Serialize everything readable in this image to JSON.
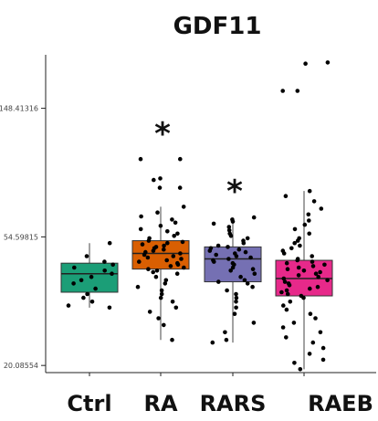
{
  "chart_data": {
    "type": "box",
    "title": "GDF11",
    "xlabel": "",
    "ylabel": "",
    "y_scale": "log",
    "ylim": [
      19.0,
      225.0
    ],
    "y_ticks": [
      {
        "value": 20.08554,
        "label": "20.08554"
      },
      {
        "value": 54.59815,
        "label": "54.59815"
      },
      {
        "value": 148.41316,
        "label": "148.41316"
      }
    ],
    "grid": false,
    "categories": [
      "Ctrl",
      "RA",
      "RARS",
      "RAEB"
    ],
    "boxes": [
      {
        "name": "Ctrl",
        "color": "#1b9e77",
        "whisker_low": 31.5,
        "q1": 35.5,
        "median": 41.0,
        "q3": 44.5,
        "whisker_high": 52.0,
        "significance": ""
      },
      {
        "name": "RA",
        "color": "#d95f02",
        "whisker_low": 24.5,
        "q1": 42.5,
        "median": 48.0,
        "q3": 53.0,
        "whisker_high": 69.0,
        "significance": "*"
      },
      {
        "name": "RARS",
        "color": "#7570b3",
        "whisker_low": 24.0,
        "q1": 38.5,
        "median": 46.0,
        "q3": 50.5,
        "whisker_high": 63.5,
        "significance": "*"
      },
      {
        "name": "RAEB",
        "color": "#e7298a",
        "whisker_low": 19.5,
        "q1": 34.5,
        "median": 39.5,
        "q3": 45.5,
        "whisker_high": 78.0,
        "significance": ""
      }
    ],
    "points": [
      {
        "group": 0,
        "values": [
          31.5,
          32.0,
          33.0,
          34.0,
          35.0,
          36.5,
          38.0,
          39.0,
          40.0,
          41.0,
          42.0,
          43.0,
          44.0,
          45.0,
          47.0,
          52.0
        ]
      },
      {
        "group": 1,
        "values": [
          24.5,
          27.5,
          29.0,
          30.5,
          31.5,
          33.0,
          34.0,
          35.0,
          36.0,
          37.0,
          38.0,
          39.0,
          40.0,
          41.0,
          41.5,
          42.0,
          42.5,
          43.0,
          43.5,
          44.0,
          44.5,
          45.0,
          45.5,
          46.0,
          46.5,
          47.0,
          47.5,
          48.0,
          48.5,
          49.0,
          49.5,
          50.0,
          50.5,
          51.0,
          51.5,
          52.0,
          52.5,
          53.0,
          54.0,
          55.0,
          56.0,
          57.0,
          58.0,
          59.5,
          61.0,
          62.5,
          64.0,
          66.0,
          69.0,
          80.0,
          80.0,
          85.0,
          86.0,
          100.0,
          100.0
        ]
      },
      {
        "group": 2,
        "values": [
          24.0,
          24.5,
          26.0,
          28.0,
          30.0,
          31.5,
          33.0,
          34.0,
          35.0,
          36.0,
          37.0,
          38.0,
          38.5,
          39.0,
          40.0,
          41.0,
          42.0,
          42.5,
          43.0,
          44.0,
          44.5,
          45.0,
          45.5,
          46.0,
          46.5,
          47.0,
          47.5,
          48.0,
          48.5,
          49.0,
          49.5,
          50.0,
          50.5,
          51.0,
          52.0,
          53.0,
          54.0,
          55.0,
          56.0,
          57.5,
          59.0,
          60.5,
          61.5,
          62.5,
          63.5
        ]
      },
      {
        "group": 3,
        "values": [
          19.5,
          20.5,
          21.0,
          22.0,
          23.0,
          24.0,
          25.0,
          26.0,
          27.0,
          28.0,
          29.0,
          30.0,
          31.0,
          32.0,
          33.0,
          34.0,
          34.5,
          35.0,
          35.5,
          36.0,
          36.5,
          37.0,
          37.5,
          38.0,
          38.5,
          39.0,
          39.5,
          40.0,
          40.5,
          41.0,
          41.5,
          42.0,
          42.5,
          43.0,
          43.5,
          44.0,
          44.5,
          45.0,
          45.5,
          46.0,
          47.0,
          48.0,
          49.0,
          50.0,
          51.0,
          52.0,
          53.0,
          54.0,
          56.0,
          58.0,
          60.0,
          62.0,
          65.0,
          68.0,
          72.0,
          75.0,
          78.0,
          210.0,
          212.0,
          170.0,
          170.0
        ]
      }
    ]
  }
}
